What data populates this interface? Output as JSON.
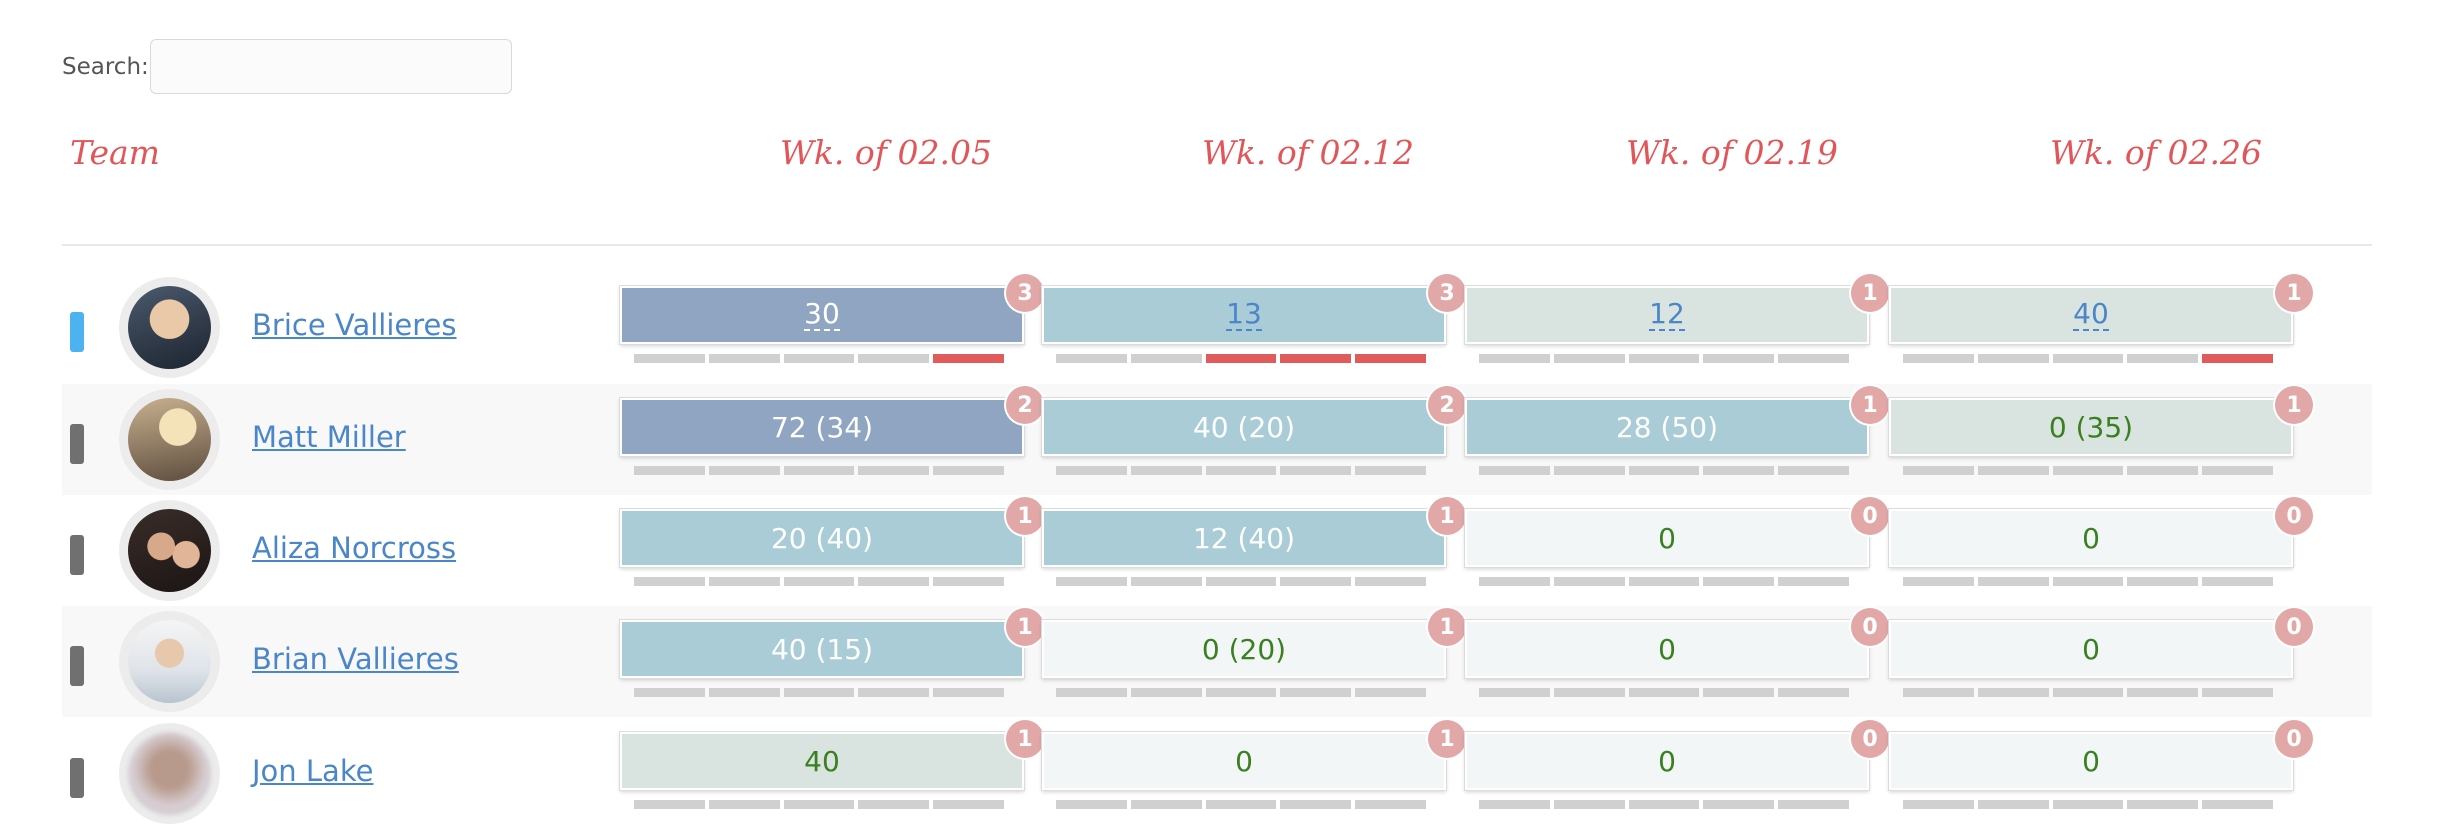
{
  "search": {
    "label": "Search:",
    "value": "",
    "placeholder": ""
  },
  "header": {
    "team": "Team",
    "weeks": [
      "Wk. of 02.05",
      "Wk. of 02.12",
      "Wk. of 02.19",
      "Wk. of 02.26"
    ]
  },
  "colors": {
    "header": "#e15759",
    "link": "#4a86c8",
    "box_dark": "#8fa5c1",
    "box_mid": "#a9ccd7",
    "box_light": "#d9e3df",
    "box_empty": "#f2f6f7",
    "badge": "#e2a7a7",
    "bar_on": "#e25b5b",
    "bar_off": "#d0d0d0",
    "marker_active": "#4db3f0",
    "marker": "#707070"
  },
  "team": [
    {
      "name": "Brice Vallieres",
      "active": true,
      "weeks": [
        {
          "value": "30",
          "badge": "3",
          "style": "dark",
          "link": true,
          "bars": [
            0,
            0,
            0,
            0,
            1
          ]
        },
        {
          "value": "13",
          "badge": "3",
          "style": "mid",
          "link": true,
          "bars": [
            0,
            0,
            1,
            1,
            1
          ]
        },
        {
          "value": "12",
          "badge": "1",
          "style": "light",
          "link": true,
          "bars": [
            0,
            0,
            0,
            0,
            0
          ]
        },
        {
          "value": "40",
          "badge": "1",
          "style": "light",
          "link": true,
          "bars": [
            0,
            0,
            0,
            0,
            1
          ]
        }
      ]
    },
    {
      "name": "Matt Miller",
      "active": false,
      "weeks": [
        {
          "value": "72 (34)",
          "badge": "2",
          "style": "dark",
          "link": false,
          "bars": [
            0,
            0,
            0,
            0,
            0
          ]
        },
        {
          "value": "40 (20)",
          "badge": "2",
          "style": "mid",
          "link": false,
          "bars": [
            0,
            0,
            0,
            0,
            0
          ]
        },
        {
          "value": "28 (50)",
          "badge": "1",
          "style": "mid",
          "link": false,
          "bars": [
            0,
            0,
            0,
            0,
            0
          ]
        },
        {
          "value": "0 (35)",
          "badge": "1",
          "style": "light",
          "link": false,
          "bars": [
            0,
            0,
            0,
            0,
            0
          ]
        }
      ]
    },
    {
      "name": "Aliza Norcross",
      "active": false,
      "weeks": [
        {
          "value": "20 (40)",
          "badge": "1",
          "style": "mid",
          "link": false,
          "bars": [
            0,
            0,
            0,
            0,
            0
          ]
        },
        {
          "value": "12 (40)",
          "badge": "1",
          "style": "mid",
          "link": false,
          "bars": [
            0,
            0,
            0,
            0,
            0
          ]
        },
        {
          "value": "0",
          "badge": "0",
          "style": "empty",
          "link": false,
          "bars": [
            0,
            0,
            0,
            0,
            0
          ]
        },
        {
          "value": "0",
          "badge": "0",
          "style": "empty",
          "link": false,
          "bars": [
            0,
            0,
            0,
            0,
            0
          ]
        }
      ]
    },
    {
      "name": "Brian Vallieres",
      "active": false,
      "weeks": [
        {
          "value": "40 (15)",
          "badge": "1",
          "style": "mid",
          "link": false,
          "bars": [
            0,
            0,
            0,
            0,
            0
          ]
        },
        {
          "value": "0 (20)",
          "badge": "1",
          "style": "empty",
          "link": false,
          "bars": [
            0,
            0,
            0,
            0,
            0
          ]
        },
        {
          "value": "0",
          "badge": "0",
          "style": "empty",
          "link": false,
          "bars": [
            0,
            0,
            0,
            0,
            0
          ]
        },
        {
          "value": "0",
          "badge": "0",
          "style": "empty",
          "link": false,
          "bars": [
            0,
            0,
            0,
            0,
            0
          ]
        }
      ]
    },
    {
      "name": "Jon Lake",
      "active": false,
      "weeks": [
        {
          "value": "40",
          "badge": "1",
          "style": "light",
          "link": false,
          "bars": [
            0,
            0,
            0,
            0,
            0
          ]
        },
        {
          "value": "0",
          "badge": "1",
          "style": "empty",
          "link": false,
          "bars": [
            0,
            0,
            0,
            0,
            0
          ]
        },
        {
          "value": "0",
          "badge": "0",
          "style": "empty",
          "link": false,
          "bars": [
            0,
            0,
            0,
            0,
            0
          ]
        },
        {
          "value": "0",
          "badge": "0",
          "style": "empty",
          "link": false,
          "bars": [
            0,
            0,
            0,
            0,
            0
          ]
        }
      ]
    }
  ]
}
